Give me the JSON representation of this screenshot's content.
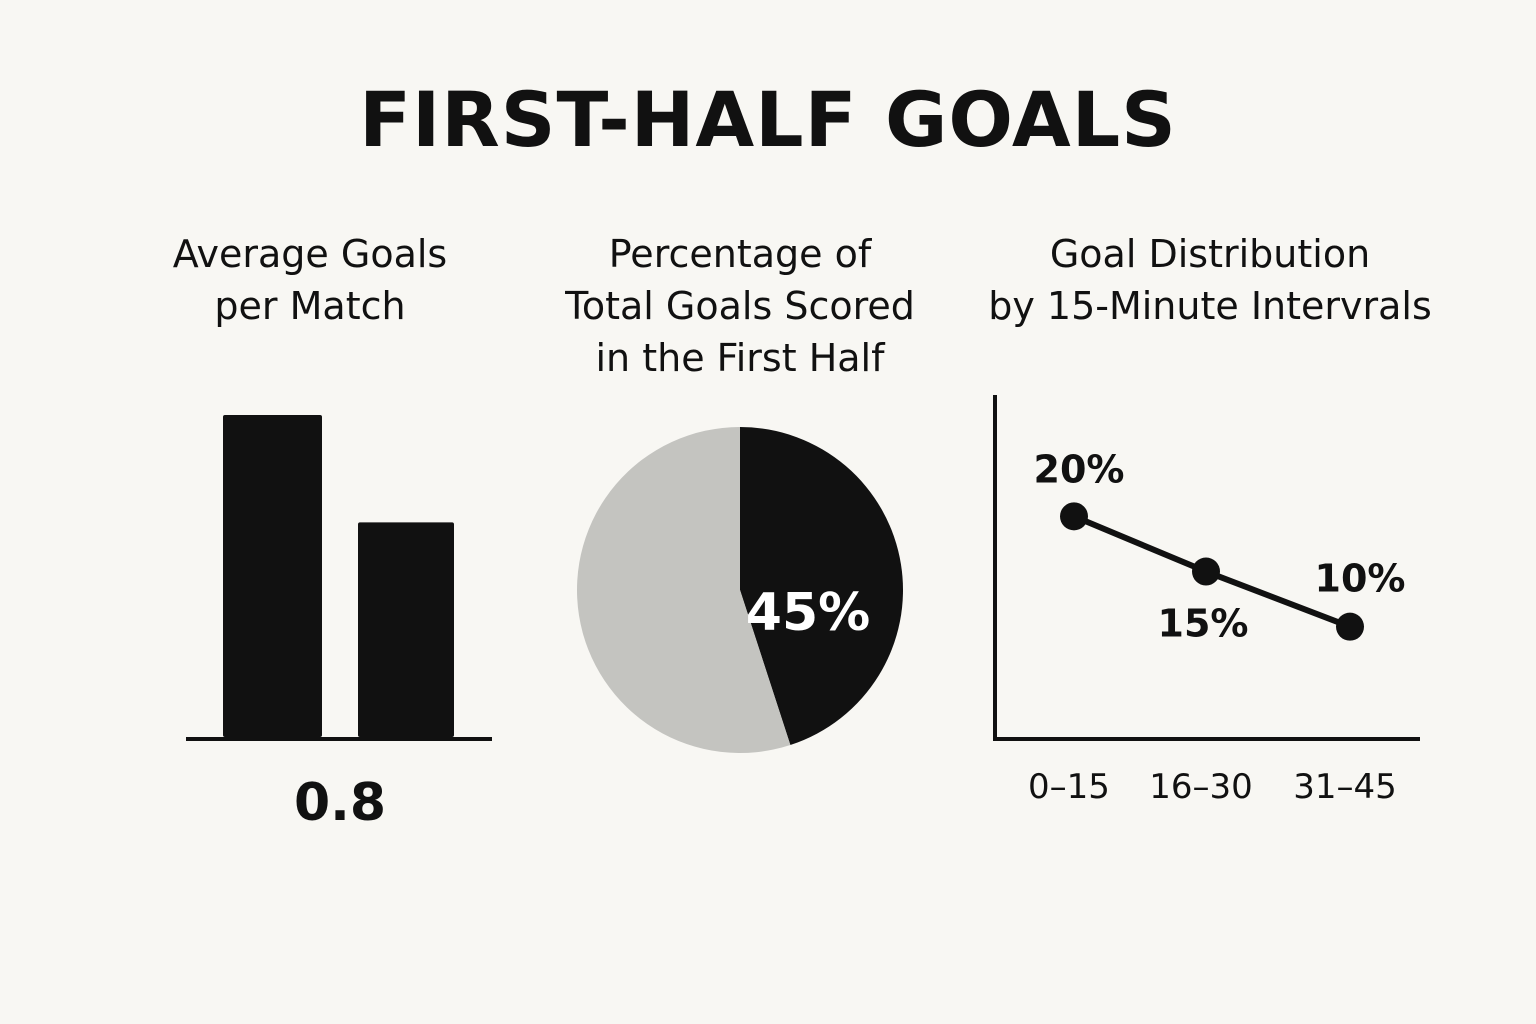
{
  "title": "FIRST-HALF GOALS",
  "colors": {
    "background": "#f8f7f3",
    "ink": "#111111",
    "pie_rest": "#c4c4c0"
  },
  "chart_data": [
    {
      "type": "bar",
      "title_lines": [
        "Average Goals",
        "per Match"
      ],
      "values": [
        1.2,
        0.8
      ],
      "value_label": "0.8",
      "ylim": [
        0,
        1.2
      ],
      "grid": false
    },
    {
      "type": "pie",
      "title_lines": [
        "Percentage of",
        "Total Goals Scored",
        "in the First Half"
      ],
      "slices": [
        {
          "value": 45,
          "label": "45%",
          "color": "#111111"
        },
        {
          "value": 55,
          "color": "#c4c4c0"
        }
      ]
    },
    {
      "type": "line",
      "title_lines": [
        "Goal Distribution",
        "by 15-Minute Intervrals"
      ],
      "categories": [
        "0–15",
        "16–30",
        "31–45"
      ],
      "values": [
        20,
        15,
        10
      ],
      "data_labels": [
        "20%",
        "15%",
        "10%"
      ],
      "ylim": [
        0,
        31
      ],
      "grid": false
    }
  ]
}
